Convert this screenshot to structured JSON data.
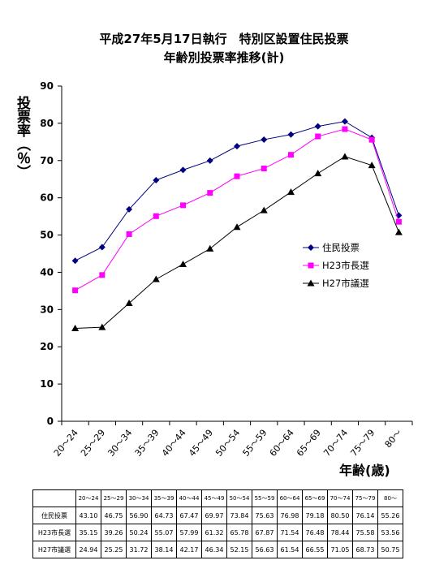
{
  "chart_data": {
    "type": "line",
    "title": "平成27年5月17日執行　特別区設置住民投票",
    "subtitle": "年齢別投票率推移(計)",
    "ylabel": "投票率（％）",
    "xlabel": "年齢(歳)",
    "ylim": [
      0,
      90
    ],
    "yticks": [
      0,
      10,
      20,
      30,
      40,
      50,
      60,
      70,
      80,
      90
    ],
    "grid": false,
    "legend_position": "right",
    "categories": [
      "20～24",
      "25～29",
      "30～34",
      "35～39",
      "40～44",
      "45～49",
      "50～54",
      "55～59",
      "60～64",
      "65～69",
      "70～74",
      "75～79",
      "80～"
    ],
    "series": [
      {
        "name": "住民投票",
        "color": "#000080",
        "marker": "diamond",
        "values": [
          43.1,
          46.75,
          56.9,
          64.73,
          67.47,
          69.97,
          73.84,
          75.63,
          76.98,
          79.18,
          80.5,
          76.14,
          55.26
        ]
      },
      {
        "name": "H23市長選",
        "color": "#ff00ff",
        "marker": "square",
        "values": [
          35.15,
          39.26,
          50.24,
          55.07,
          57.99,
          61.32,
          65.78,
          67.87,
          71.54,
          76.48,
          78.44,
          75.58,
          53.56
        ]
      },
      {
        "name": "H27市議選",
        "color": "#000000",
        "marker": "triangle",
        "values": [
          24.94,
          25.25,
          31.72,
          38.14,
          42.17,
          46.34,
          52.15,
          56.63,
          61.54,
          66.55,
          71.05,
          68.73,
          50.75
        ]
      }
    ]
  },
  "table": {
    "headers": [
      "20～24",
      "25～29",
      "30～34",
      "35～39",
      "40～44",
      "45～49",
      "50～54",
      "55～59",
      "60～64",
      "65～69",
      "70～74",
      "75～79",
      "80～"
    ],
    "rows": [
      {
        "label": "住民投票",
        "values": [
          "43.10",
          "46.75",
          "56.90",
          "64.73",
          "67.47",
          "69.97",
          "73.84",
          "75.63",
          "76.98",
          "79.18",
          "80.50",
          "76.14",
          "55.26"
        ]
      },
      {
        "label": "H23市長選",
        "values": [
          "35.15",
          "39.26",
          "50.24",
          "55.07",
          "57.99",
          "61.32",
          "65.78",
          "67.87",
          "71.54",
          "76.48",
          "78.44",
          "75.58",
          "53.56"
        ]
      },
      {
        "label": "H27市議選",
        "values": [
          "24.94",
          "25.25",
          "31.72",
          "38.14",
          "42.17",
          "46.34",
          "52.15",
          "56.63",
          "61.54",
          "66.55",
          "71.05",
          "68.73",
          "50.75"
        ]
      }
    ]
  }
}
